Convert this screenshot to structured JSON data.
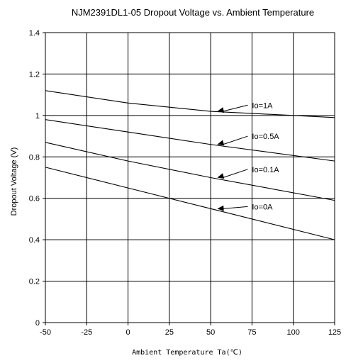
{
  "chart_data": {
    "type": "line",
    "title": "NJM2391DL1-05 Dropout Voltage vs. Ambient Temperature",
    "xlabel": "Ambient Temperature Ta(℃)",
    "ylabel": "Dropout Voltage (V)",
    "xlim": [
      -50,
      125
    ],
    "ylim": [
      0,
      1.4
    ],
    "xticks": [
      "-50",
      "-25",
      "0",
      "25",
      "50",
      "75",
      "100",
      "125"
    ],
    "yticks": [
      "0",
      "0.2",
      "0.4",
      "0.6",
      "0.8",
      "1",
      "1.2",
      "1.4"
    ],
    "grid": true,
    "series": [
      {
        "name": "Io=1A",
        "x": [
          -50,
          0,
          50,
          125
        ],
        "y": [
          1.12,
          1.06,
          1.02,
          0.99
        ],
        "label_x": 54,
        "label_y": 1.02,
        "text_x": 75,
        "text_y": 1.05
      },
      {
        "name": "Io=0.5A",
        "x": [
          -50,
          0,
          50,
          125
        ],
        "y": [
          0.98,
          0.92,
          0.86,
          0.78
        ],
        "label_x": 54,
        "label_y": 0.86,
        "text_x": 75,
        "text_y": 0.9
      },
      {
        "name": "Io=0.1A",
        "x": [
          -50,
          0,
          50,
          125
        ],
        "y": [
          0.87,
          0.78,
          0.7,
          0.59
        ],
        "label_x": 54,
        "label_y": 0.7,
        "text_x": 75,
        "text_y": 0.74
      },
      {
        "name": "Io=0A",
        "x": [
          -50,
          0,
          50,
          125
        ],
        "y": [
          0.75,
          0.65,
          0.55,
          0.4
        ],
        "label_x": 54,
        "label_y": 0.55,
        "text_x": 75,
        "text_y": 0.56
      }
    ]
  }
}
